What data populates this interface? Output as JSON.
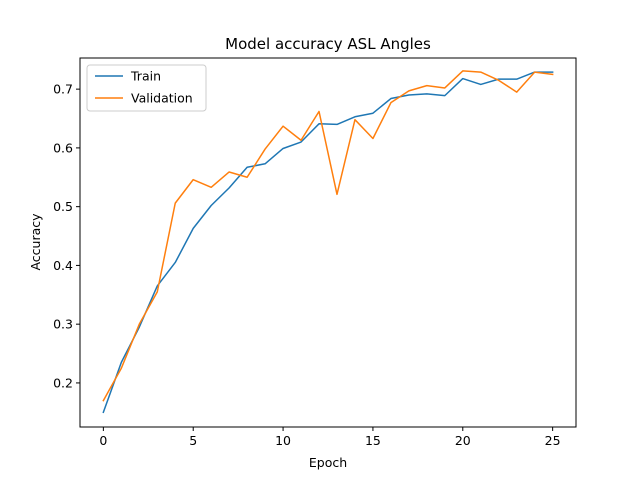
{
  "chart_data": {
    "type": "line",
    "title": "Model accuracy ASL Angles",
    "xlabel": "Epoch",
    "ylabel": "Accuracy",
    "xlim": [
      -1.3,
      26.3
    ],
    "ylim": [
      0.125,
      0.753
    ],
    "xticks": [
      0,
      5,
      10,
      15,
      20,
      25
    ],
    "xtick_labels": [
      "0",
      "5",
      "10",
      "15",
      "20",
      "25"
    ],
    "yticks": [
      0.2,
      0.3,
      0.4,
      0.5,
      0.6,
      0.7
    ],
    "ytick_labels": [
      "0.2",
      "0.3",
      "0.4",
      "0.5",
      "0.6",
      "0.7"
    ],
    "grid": false,
    "legend_position": "top-left",
    "x": [
      0,
      1,
      2,
      3,
      4,
      5,
      6,
      7,
      8,
      9,
      10,
      11,
      12,
      13,
      14,
      15,
      16,
      17,
      18,
      19,
      20,
      21,
      22,
      23,
      24,
      25
    ],
    "series": [
      {
        "name": "Train",
        "color": "#1f77b4",
        "values": [
          0.15,
          0.235,
          0.295,
          0.365,
          0.405,
          0.463,
          0.502,
          0.532,
          0.567,
          0.573,
          0.599,
          0.61,
          0.641,
          0.64,
          0.653,
          0.659,
          0.684,
          0.69,
          0.692,
          0.689,
          0.718,
          0.708,
          0.717,
          0.717,
          0.729,
          0.729
        ]
      },
      {
        "name": "Validation",
        "color": "#ff7f0e",
        "values": [
          0.17,
          0.225,
          0.3,
          0.355,
          0.506,
          0.546,
          0.533,
          0.559,
          0.55,
          0.598,
          0.637,
          0.613,
          0.662,
          0.521,
          0.648,
          0.616,
          0.677,
          0.697,
          0.706,
          0.702,
          0.731,
          0.729,
          0.715,
          0.695,
          0.729,
          0.725
        ]
      }
    ]
  }
}
